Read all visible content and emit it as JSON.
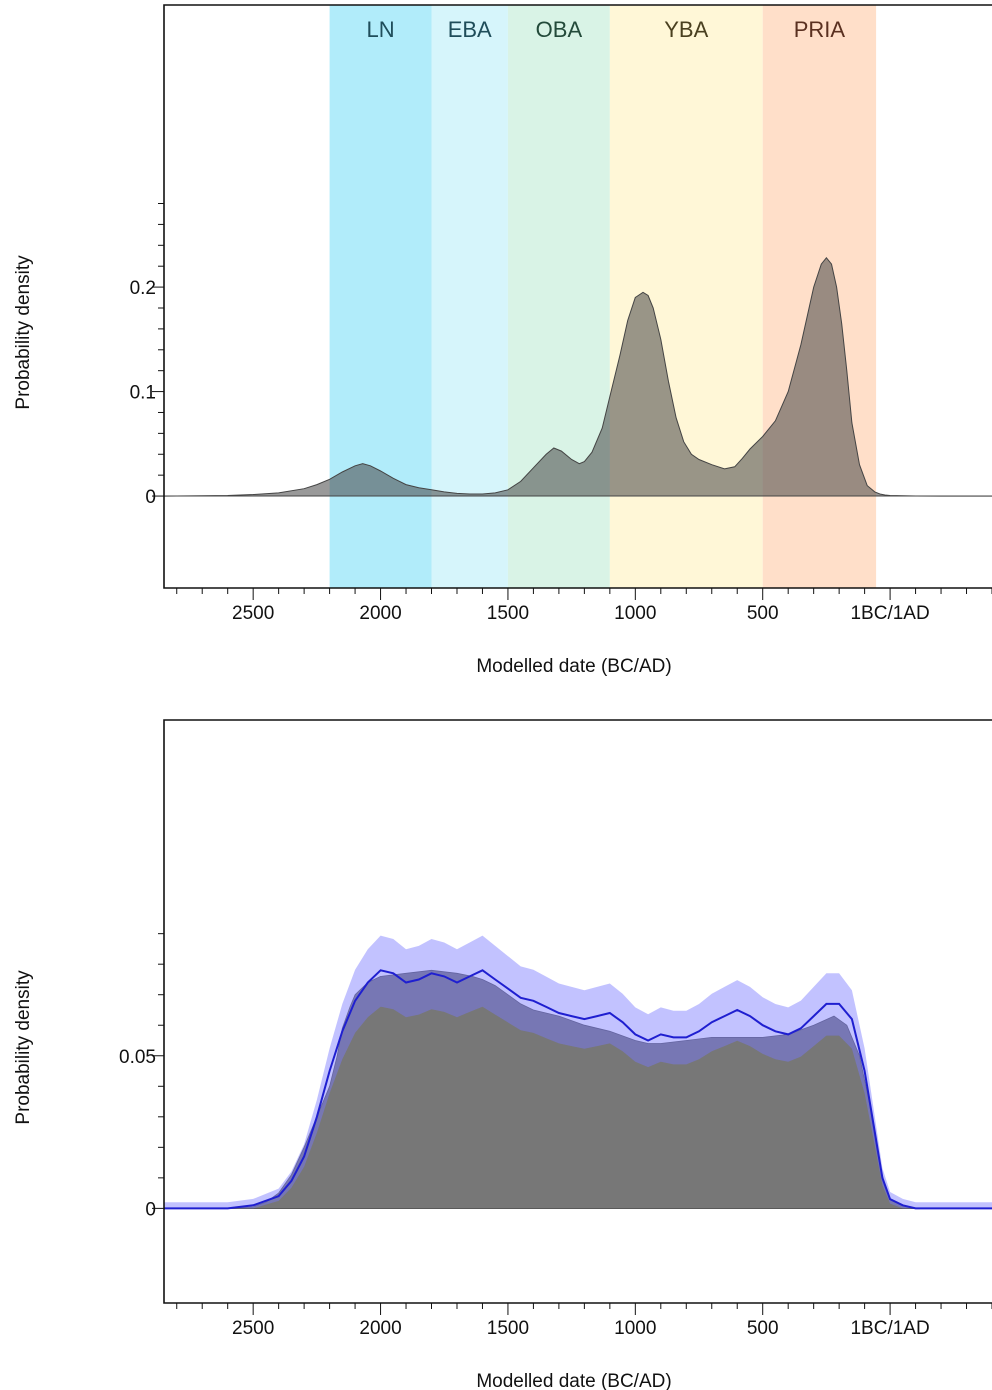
{
  "chart_data": [
    {
      "type": "area",
      "xlabel": "Modelled date (BC/AD)",
      "ylabel": "Probability density",
      "xlim": [
        -2850,
        400
      ],
      "ylim": [
        -0.088,
        0.47
      ],
      "x_ticks": [
        {
          "value": -2500,
          "label": "2500"
        },
        {
          "value": -2000,
          "label": "2000"
        },
        {
          "value": -1500,
          "label": "1500"
        },
        {
          "value": -1000,
          "label": "1000"
        },
        {
          "value": -500,
          "label": "500"
        },
        {
          "value": 0,
          "label": "1BC/1AD"
        }
      ],
      "y_ticks": [
        {
          "value": 0,
          "label": "0"
        },
        {
          "value": 0.1,
          "label": "0.1"
        },
        {
          "value": 0.2,
          "label": "0.2"
        }
      ],
      "periods": [
        {
          "label": "LN",
          "start": -2200,
          "end": -1800,
          "color": "#b1ecfa",
          "text_color": "#1f4d5a"
        },
        {
          "label": "EBA",
          "start": -1800,
          "end": -1500,
          "color": "#d6f5fb",
          "text_color": "#1f4d5a"
        },
        {
          "label": "OBA",
          "start": -1500,
          "end": -1100,
          "color": "#d9f3e6",
          "text_color": "#234a3a"
        },
        {
          "label": "YBA",
          "start": -1100,
          "end": -500,
          "color": "#fff7d7",
          "text_color": "#4a4020"
        },
        {
          "label": "PRIA",
          "start": -500,
          "end": -55,
          "color": "#ffdfc9",
          "text_color": "#5a3020"
        }
      ],
      "series": [
        {
          "x": [
            -2850,
            -2600,
            -2500,
            -2400,
            -2300,
            -2250,
            -2200,
            -2150,
            -2100,
            -2070,
            -2040,
            -2000,
            -1950,
            -1900,
            -1850,
            -1800,
            -1750,
            -1700,
            -1650,
            -1600,
            -1550,
            -1500,
            -1450,
            -1400,
            -1350,
            -1320,
            -1290,
            -1250,
            -1220,
            -1200,
            -1170,
            -1130,
            -1100,
            -1060,
            -1030,
            -1000,
            -970,
            -950,
            -930,
            -900,
            -870,
            -840,
            -810,
            -780,
            -750,
            -700,
            -650,
            -610,
            -580,
            -550,
            -500,
            -450,
            -400,
            -350,
            -300,
            -270,
            -250,
            -230,
            -210,
            -190,
            -170,
            -150,
            -120,
            -90,
            -60,
            -40,
            -20,
            0,
            50,
            100,
            200,
            300,
            400
          ],
          "y": [
            0,
            0.0005,
            0.0015,
            0.003,
            0.007,
            0.011,
            0.016,
            0.023,
            0.029,
            0.031,
            0.029,
            0.024,
            0.017,
            0.011,
            0.008,
            0.006,
            0.004,
            0.0025,
            0.002,
            0.002,
            0.003,
            0.006,
            0.014,
            0.027,
            0.04,
            0.046,
            0.043,
            0.035,
            0.031,
            0.033,
            0.042,
            0.065,
            0.095,
            0.135,
            0.168,
            0.19,
            0.195,
            0.192,
            0.18,
            0.15,
            0.11,
            0.075,
            0.052,
            0.04,
            0.035,
            0.03,
            0.026,
            0.028,
            0.036,
            0.045,
            0.057,
            0.072,
            0.1,
            0.145,
            0.2,
            0.222,
            0.228,
            0.222,
            0.2,
            0.165,
            0.12,
            0.07,
            0.03,
            0.01,
            0.004,
            0.002,
            0.001,
            0.0005,
            0.0002,
            0.0001,
            0,
            0,
            0
          ],
          "color": "#555555"
        }
      ]
    },
    {
      "type": "area",
      "xlabel": "Modelled date (BC/AD)",
      "ylabel": "Probability density",
      "xlim": [
        -2850,
        400
      ],
      "ylim": [
        -0.031,
        0.16
      ],
      "x_ticks": [
        {
          "value": -2500,
          "label": "2500"
        },
        {
          "value": -2000,
          "label": "2000"
        },
        {
          "value": -1500,
          "label": "1500"
        },
        {
          "value": -1000,
          "label": "1000"
        },
        {
          "value": -500,
          "label": "500"
        },
        {
          "value": 0,
          "label": "1BC/1AD"
        }
      ],
      "y_ticks": [
        {
          "value": 0,
          "label": "0"
        },
        {
          "value": 0.05,
          "label": "0.05"
        }
      ],
      "series": [
        {
          "x": [
            -2850,
            -2600,
            -2500,
            -2450,
            -2400,
            -2350,
            -2300,
            -2250,
            -2200,
            -2170,
            -2150,
            -2120,
            -2100,
            -2050,
            -2000,
            -1900,
            -1800,
            -1700,
            -1640,
            -1600,
            -1550,
            -1500,
            -1450,
            -1400,
            -1300,
            -1200,
            -1100,
            -1000,
            -950,
            -900,
            -800,
            -700,
            -600,
            -500,
            -400,
            -300,
            -220,
            -170,
            -120,
            -80,
            -50,
            -20,
            0,
            50,
            100,
            200,
            300,
            400
          ],
          "y": [
            0,
            0,
            0.0005,
            0.002,
            0.005,
            0.011,
            0.02,
            0.03,
            0.04,
            0.05,
            0.059,
            0.066,
            0.07,
            0.074,
            0.076,
            0.077,
            0.078,
            0.077,
            0.076,
            0.075,
            0.073,
            0.07,
            0.067,
            0.065,
            0.063,
            0.06,
            0.058,
            0.055,
            0.054,
            0.054,
            0.055,
            0.056,
            0.056,
            0.056,
            0.057,
            0.06,
            0.063,
            0.06,
            0.05,
            0.034,
            0.018,
            0.007,
            0.003,
            0.001,
            0,
            0,
            0,
            0
          ],
          "color": "#777777"
        },
        {
          "x": [
            -2850,
            -2600,
            -2500,
            -2400,
            -2350,
            -2300,
            -2250,
            -2200,
            -2150,
            -2100,
            -2050,
            -2000,
            -1950,
            -1900,
            -1850,
            -1800,
            -1750,
            -1700,
            -1650,
            -1600,
            -1550,
            -1500,
            -1450,
            -1400,
            -1350,
            -1300,
            -1250,
            -1200,
            -1150,
            -1100,
            -1050,
            -1000,
            -950,
            -900,
            -850,
            -800,
            -750,
            -700,
            -650,
            -600,
            -550,
            -500,
            -450,
            -400,
            -350,
            -300,
            -250,
            -200,
            -150,
            -100,
            -60,
            -30,
            0,
            50,
            100,
            200,
            300,
            400
          ],
          "y": [
            0,
            0,
            0.001,
            0.004,
            0.009,
            0.017,
            0.03,
            0.045,
            0.058,
            0.068,
            0.074,
            0.078,
            0.077,
            0.074,
            0.075,
            0.077,
            0.076,
            0.074,
            0.076,
            0.078,
            0.075,
            0.072,
            0.069,
            0.068,
            0.066,
            0.064,
            0.063,
            0.062,
            0.063,
            0.064,
            0.061,
            0.057,
            0.055,
            0.057,
            0.056,
            0.056,
            0.058,
            0.061,
            0.063,
            0.065,
            0.063,
            0.06,
            0.058,
            0.057,
            0.059,
            0.063,
            0.067,
            0.067,
            0.062,
            0.045,
            0.025,
            0.01,
            0.003,
            0.001,
            0,
            0,
            0,
            0
          ],
          "color": "#1f1fd0"
        }
      ]
    }
  ]
}
